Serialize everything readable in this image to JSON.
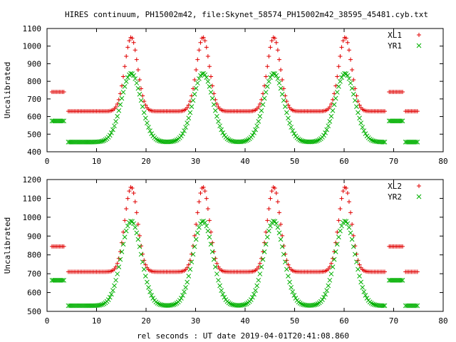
{
  "title": "HIRES continuum, PH15002m42, file:Skynet_58574_PH15002m42_38595_45481.cyb.txt",
  "xlabel": "rel seconds : UT date 2019-04-01T20:41:08.860",
  "colors": {
    "red": "#e00000",
    "green": "#00b000"
  },
  "chart_data": [
    {
      "type": "scatter",
      "title": "",
      "xlabel": "",
      "ylabel": "Uncalibrated",
      "xlim": [
        0,
        80
      ],
      "ylim": [
        400,
        1100
      ],
      "xticks": [
        0,
        10,
        20,
        30,
        40,
        50,
        60,
        70,
        80
      ],
      "yticks": [
        400,
        500,
        600,
        700,
        800,
        900,
        1000,
        1100
      ],
      "legend_position": "top-right",
      "series": [
        {
          "name": "XL1",
          "marker": "plus",
          "color": "#e00000",
          "base": 630,
          "peak": 1050,
          "high_plateau": 740,
          "sigma": 1.3,
          "peak_centers": [
            17.0,
            31.5,
            45.8,
            60.2
          ],
          "plateau_ranges": [
            [
              1.0,
              3.6
            ],
            [
              68.8,
              71.8
            ]
          ],
          "gaps": [
            [
              3.6,
              4.1
            ],
            [
              68.3,
              68.8
            ],
            [
              71.8,
              72.3
            ]
          ],
          "x_range": [
            1.0,
            75.0
          ]
        },
        {
          "name": "YR1",
          "marker": "x",
          "color": "#00b000",
          "base": 455,
          "peak": 845,
          "high_plateau": 575,
          "sigma": 2.0,
          "peak_centers": [
            17.0,
            31.5,
            45.8,
            60.2
          ],
          "plateau_ranges": [
            [
              1.0,
              3.6
            ],
            [
              68.8,
              71.8
            ]
          ],
          "gaps": [
            [
              3.6,
              4.1
            ],
            [
              68.3,
              68.8
            ],
            [
              71.8,
              72.3
            ]
          ],
          "x_range": [
            1.0,
            75.0
          ]
        }
      ]
    },
    {
      "type": "scatter",
      "title": "",
      "xlabel": "rel seconds : UT date 2019-04-01T20:41:08.860",
      "ylabel": "Uncalibrated",
      "xlim": [
        0,
        80
      ],
      "ylim": [
        500,
        1200
      ],
      "xticks": [
        0,
        10,
        20,
        30,
        40,
        50,
        60,
        70,
        80
      ],
      "yticks": [
        500,
        600,
        700,
        800,
        900,
        1000,
        1100,
        1200
      ],
      "legend_position": "top-right",
      "series": [
        {
          "name": "XL2",
          "marker": "plus",
          "color": "#e00000",
          "base": 710,
          "peak": 1160,
          "high_plateau": 845,
          "sigma": 1.3,
          "peak_centers": [
            17.0,
            31.5,
            45.8,
            60.2
          ],
          "plateau_ranges": [
            [
              1.0,
              3.6
            ],
            [
              68.8,
              71.8
            ]
          ],
          "gaps": [
            [
              3.6,
              4.1
            ],
            [
              68.3,
              68.8
            ],
            [
              71.8,
              72.3
            ]
          ],
          "x_range": [
            1.0,
            75.0
          ]
        },
        {
          "name": "YR2",
          "marker": "x",
          "color": "#00b000",
          "base": 530,
          "peak": 980,
          "high_plateau": 665,
          "sigma": 2.0,
          "peak_centers": [
            17.0,
            31.5,
            45.8,
            60.2
          ],
          "plateau_ranges": [
            [
              1.0,
              3.6
            ],
            [
              68.8,
              71.8
            ]
          ],
          "gaps": [
            [
              3.6,
              4.1
            ],
            [
              68.3,
              68.8
            ],
            [
              71.8,
              72.3
            ]
          ],
          "x_range": [
            1.0,
            75.0
          ]
        }
      ]
    }
  ]
}
